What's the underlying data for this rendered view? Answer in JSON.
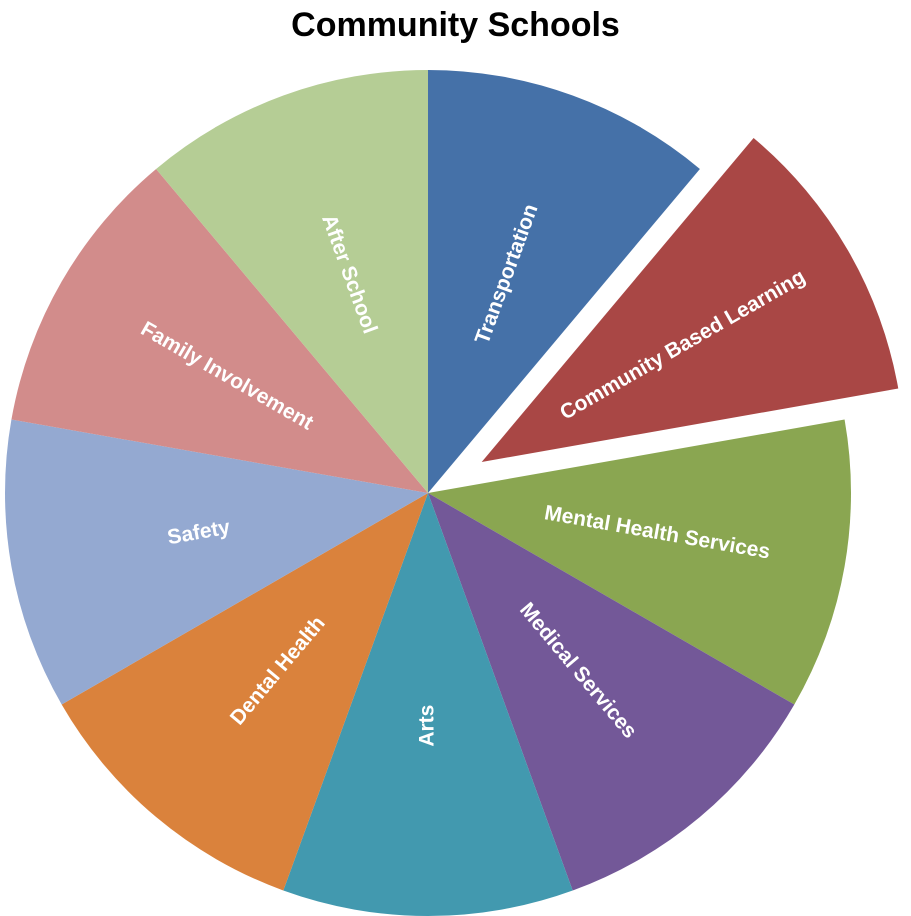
{
  "chart_data": {
    "type": "pie",
    "title": "Community Schools",
    "categories": [
      "Transportation",
      "Community Based Learning",
      "Mental Health Services",
      "Medical Services",
      "Arts",
      "Dental Health",
      "Safety",
      "Family Involvement",
      "After School"
    ],
    "values": [
      1,
      1,
      1,
      1,
      1,
      1,
      1,
      1,
      1
    ],
    "exploded": [
      "Community Based Learning"
    ],
    "colors": [
      "#4571A8",
      "#A94745",
      "#8AA651",
      "#735898",
      "#4299AF",
      "#DA823C",
      "#94A9D1",
      "#D28C8B",
      "#B5CD95"
    ],
    "legend": "none"
  }
}
